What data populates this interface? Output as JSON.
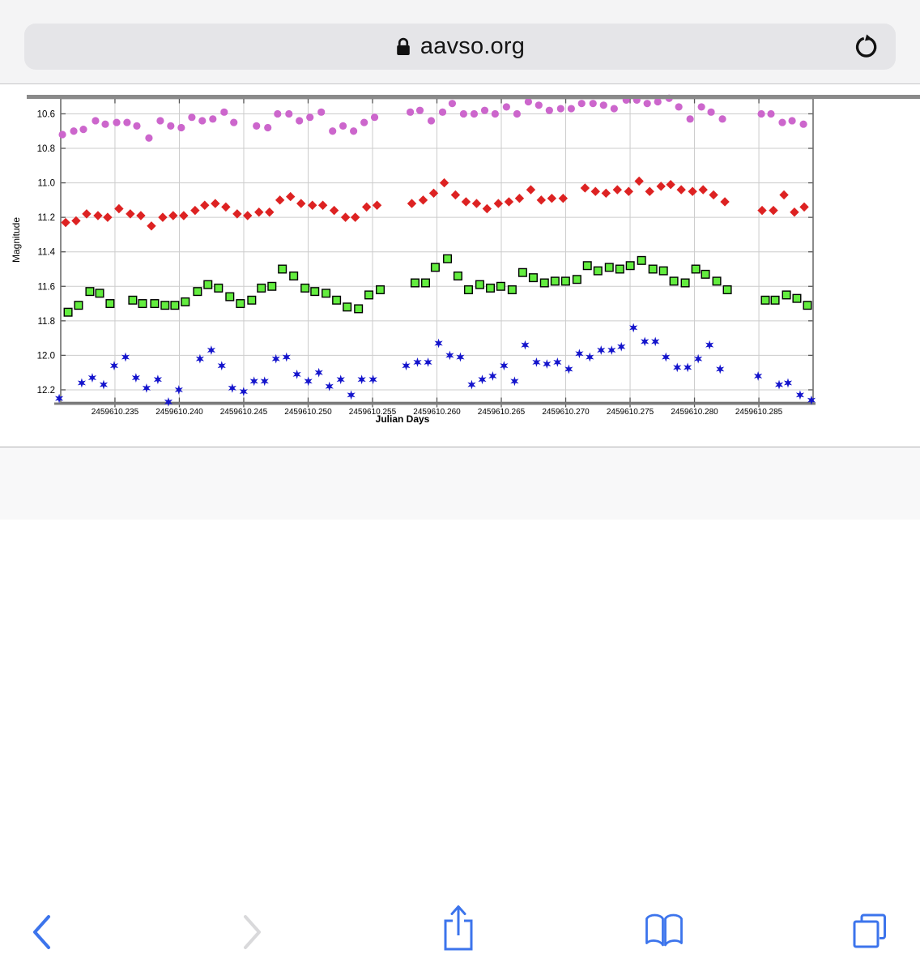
{
  "browser": {
    "url_bar": {
      "domain": "aavso.org",
      "lock_icon": "lock",
      "refresh_icon": "reload"
    },
    "toolbar": {
      "back": {
        "icon": "chevron-left",
        "enabled": true
      },
      "forward": {
        "icon": "chevron-right",
        "enabled": false
      },
      "share": {
        "icon": "share-up-arrow"
      },
      "bookmarks": {
        "icon": "open-book"
      },
      "tabs": {
        "icon": "tab-overview"
      }
    },
    "colors": {
      "accent_blue": "#3c74ec",
      "disabled_gray": "#d9d9db"
    }
  },
  "chart_data": {
    "type": "scatter",
    "title": "",
    "xlabel": "Julian Days",
    "ylabel": "Magnitude",
    "x_base": 2459610,
    "x_axis": {
      "tick_values": [
        0.235,
        0.24,
        0.245,
        0.25,
        0.255,
        0.26,
        0.265,
        0.27,
        0.275,
        0.28,
        0.285
      ],
      "tick_labels": [
        "2459610.235",
        "2459610.240",
        "2459610.245",
        "2459610.250",
        "2459610.255",
        "2459610.260",
        "2459610.265",
        "2459610.270",
        "2459610.275",
        "2459610.280",
        "2459610.285"
      ]
    },
    "y_axis": {
      "tick_values": [
        10.6,
        10.8,
        11.0,
        11.2,
        11.4,
        11.6,
        11.8,
        12.0,
        12.2
      ],
      "tick_labels": [
        "10.6",
        "10.8",
        "11.0",
        "11.2",
        "11.4",
        "11.6",
        "11.8",
        "12.0",
        "12.2"
      ]
    },
    "xlim": [
      0.23079,
      0.28921
    ],
    "ylim": [
      10.511,
      12.273
    ],
    "y_inverted": true,
    "grid": true,
    "grid_color": "#cccccc",
    "legend": "none",
    "series": [
      {
        "name": "violet-circles",
        "marker": "circle",
        "color": "#cc66cc",
        "points": [
          [
            0.23092,
            10.72
          ],
          [
            0.2318,
            10.7
          ],
          [
            0.23255,
            10.69
          ],
          [
            0.23349,
            10.64
          ],
          [
            0.23425,
            10.66
          ],
          [
            0.23513,
            10.65
          ],
          [
            0.23594,
            10.65
          ],
          [
            0.2367,
            10.67
          ],
          [
            0.23764,
            10.74
          ],
          [
            0.23852,
            10.64
          ],
          [
            0.23933,
            10.67
          ],
          [
            0.24015,
            10.68
          ],
          [
            0.24097,
            10.62
          ],
          [
            0.24178,
            10.64
          ],
          [
            0.2426,
            10.63
          ],
          [
            0.24348,
            10.59
          ],
          [
            0.24423,
            10.65
          ],
          [
            0.24599,
            10.67
          ],
          [
            0.24687,
            10.68
          ],
          [
            0.24763,
            10.6
          ],
          [
            0.24851,
            10.6
          ],
          [
            0.24932,
            10.64
          ],
          [
            0.25014,
            10.62
          ],
          [
            0.25102,
            10.59
          ],
          [
            0.2519,
            10.7
          ],
          [
            0.25271,
            10.67
          ],
          [
            0.25353,
            10.7
          ],
          [
            0.25435,
            10.65
          ],
          [
            0.25516,
            10.62
          ],
          [
            0.25793,
            10.59
          ],
          [
            0.25868,
            10.58
          ],
          [
            0.25956,
            10.64
          ],
          [
            0.26044,
            10.59
          ],
          [
            0.26119,
            10.54
          ],
          [
            0.26207,
            10.6
          ],
          [
            0.26289,
            10.6
          ],
          [
            0.26371,
            10.58
          ],
          [
            0.26452,
            10.6
          ],
          [
            0.2654,
            10.56
          ],
          [
            0.26622,
            10.6
          ],
          [
            0.2671,
            10.53
          ],
          [
            0.26791,
            10.55
          ],
          [
            0.26873,
            10.58
          ],
          [
            0.26961,
            10.57
          ],
          [
            0.27043,
            10.57
          ],
          [
            0.27124,
            10.54
          ],
          [
            0.27212,
            10.54
          ],
          [
            0.27294,
            10.55
          ],
          [
            0.27376,
            10.57
          ],
          [
            0.2747,
            10.52
          ],
          [
            0.27552,
            10.52
          ],
          [
            0.27633,
            10.54
          ],
          [
            0.27715,
            10.53
          ],
          [
            0.27803,
            10.51
          ],
          [
            0.27878,
            10.56
          ],
          [
            0.27966,
            10.63
          ],
          [
            0.28054,
            10.56
          ],
          [
            0.28129,
            10.59
          ],
          [
            0.28217,
            10.63
          ],
          [
            0.28519,
            10.6
          ],
          [
            0.28594,
            10.6
          ],
          [
            0.28682,
            10.65
          ],
          [
            0.28758,
            10.64
          ],
          [
            0.28846,
            10.66
          ]
        ]
      },
      {
        "name": "red-diamonds",
        "marker": "diamond",
        "color": "#dd2222",
        "points": [
          [
            0.23117,
            11.23
          ],
          [
            0.23198,
            11.22
          ],
          [
            0.2328,
            11.18
          ],
          [
            0.23368,
            11.19
          ],
          [
            0.23443,
            11.2
          ],
          [
            0.23531,
            11.15
          ],
          [
            0.23619,
            11.18
          ],
          [
            0.23701,
            11.19
          ],
          [
            0.23783,
            11.25
          ],
          [
            0.23871,
            11.2
          ],
          [
            0.23952,
            11.19
          ],
          [
            0.24034,
            11.19
          ],
          [
            0.24122,
            11.16
          ],
          [
            0.24197,
            11.13
          ],
          [
            0.24279,
            11.12
          ],
          [
            0.24361,
            11.14
          ],
          [
            0.24449,
            11.18
          ],
          [
            0.2453,
            11.19
          ],
          [
            0.24618,
            11.17
          ],
          [
            0.247,
            11.17
          ],
          [
            0.24781,
            11.1
          ],
          [
            0.24863,
            11.08
          ],
          [
            0.24945,
            11.12
          ],
          [
            0.25033,
            11.13
          ],
          [
            0.25114,
            11.13
          ],
          [
            0.25202,
            11.16
          ],
          [
            0.2529,
            11.2
          ],
          [
            0.25366,
            11.2
          ],
          [
            0.25454,
            11.14
          ],
          [
            0.25535,
            11.13
          ],
          [
            0.25805,
            11.12
          ],
          [
            0.25893,
            11.1
          ],
          [
            0.25975,
            11.06
          ],
          [
            0.26057,
            11.0
          ],
          [
            0.26144,
            11.07
          ],
          [
            0.26226,
            11.11
          ],
          [
            0.26308,
            11.12
          ],
          [
            0.26389,
            11.15
          ],
          [
            0.26477,
            11.12
          ],
          [
            0.26559,
            11.11
          ],
          [
            0.26641,
            11.09
          ],
          [
            0.26729,
            11.04
          ],
          [
            0.2681,
            11.1
          ],
          [
            0.26892,
            11.09
          ],
          [
            0.2698,
            11.09
          ],
          [
            0.2715,
            11.03
          ],
          [
            0.27231,
            11.05
          ],
          [
            0.27313,
            11.06
          ],
          [
            0.27401,
            11.04
          ],
          [
            0.27489,
            11.05
          ],
          [
            0.2757,
            10.99
          ],
          [
            0.27652,
            11.05
          ],
          [
            0.2774,
            11.02
          ],
          [
            0.27815,
            11.01
          ],
          [
            0.27897,
            11.04
          ],
          [
            0.27985,
            11.05
          ],
          [
            0.28067,
            11.04
          ],
          [
            0.28148,
            11.07
          ],
          [
            0.28236,
            11.11
          ],
          [
            0.28525,
            11.16
          ],
          [
            0.28613,
            11.16
          ],
          [
            0.28695,
            11.07
          ],
          [
            0.28776,
            11.17
          ],
          [
            0.28852,
            11.14
          ]
        ]
      },
      {
        "name": "green-squares",
        "marker": "square",
        "color": "#63ed3f",
        "border": "#000000",
        "points": [
          [
            0.23136,
            11.75
          ],
          [
            0.23217,
            11.71
          ],
          [
            0.23305,
            11.63
          ],
          [
            0.23381,
            11.64
          ],
          [
            0.23462,
            11.7
          ],
          [
            0.23638,
            11.68
          ],
          [
            0.23714,
            11.7
          ],
          [
            0.23808,
            11.7
          ],
          [
            0.23889,
            11.71
          ],
          [
            0.23965,
            11.71
          ],
          [
            0.24046,
            11.69
          ],
          [
            0.24141,
            11.63
          ],
          [
            0.24222,
            11.59
          ],
          [
            0.24304,
            11.61
          ],
          [
            0.24392,
            11.66
          ],
          [
            0.24474,
            11.7
          ],
          [
            0.24562,
            11.68
          ],
          [
            0.24637,
            11.61
          ],
          [
            0.24719,
            11.6
          ],
          [
            0.248,
            11.5
          ],
          [
            0.24888,
            11.54
          ],
          [
            0.24976,
            11.61
          ],
          [
            0.25052,
            11.63
          ],
          [
            0.25139,
            11.64
          ],
          [
            0.25221,
            11.68
          ],
          [
            0.25303,
            11.72
          ],
          [
            0.25391,
            11.73
          ],
          [
            0.25472,
            11.65
          ],
          [
            0.2556,
            11.62
          ],
          [
            0.2583,
            11.58
          ],
          [
            0.25912,
            11.58
          ],
          [
            0.25987,
            11.49
          ],
          [
            0.26082,
            11.44
          ],
          [
            0.26163,
            11.54
          ],
          [
            0.26245,
            11.62
          ],
          [
            0.26333,
            11.59
          ],
          [
            0.26415,
            11.61
          ],
          [
            0.26496,
            11.6
          ],
          [
            0.26584,
            11.62
          ],
          [
            0.26666,
            11.52
          ],
          [
            0.26748,
            11.55
          ],
          [
            0.26835,
            11.58
          ],
          [
            0.26917,
            11.57
          ],
          [
            0.26999,
            11.57
          ],
          [
            0.27087,
            11.56
          ],
          [
            0.27168,
            11.48
          ],
          [
            0.2725,
            11.51
          ],
          [
            0.27338,
            11.49
          ],
          [
            0.2742,
            11.5
          ],
          [
            0.27501,
            11.48
          ],
          [
            0.27589,
            11.45
          ],
          [
            0.27677,
            11.5
          ],
          [
            0.27759,
            11.51
          ],
          [
            0.2784,
            11.57
          ],
          [
            0.27928,
            11.58
          ],
          [
            0.2801,
            11.5
          ],
          [
            0.28085,
            11.53
          ],
          [
            0.28173,
            11.57
          ],
          [
            0.28255,
            11.62
          ],
          [
            0.2855,
            11.68
          ],
          [
            0.28626,
            11.68
          ],
          [
            0.28714,
            11.65
          ],
          [
            0.28795,
            11.67
          ],
          [
            0.28877,
            11.71
          ]
        ]
      },
      {
        "name": "blue-stars",
        "marker": "star",
        "color": "#1414cc",
        "points": [
          [
            0.23067,
            12.25
          ],
          [
            0.23242,
            12.16
          ],
          [
            0.23324,
            12.13
          ],
          [
            0.23412,
            12.17
          ],
          [
            0.23494,
            12.06
          ],
          [
            0.23582,
            12.01
          ],
          [
            0.23663,
            12.13
          ],
          [
            0.23745,
            12.19
          ],
          [
            0.23833,
            12.14
          ],
          [
            0.23915,
            12.27
          ],
          [
            0.23996,
            12.2
          ],
          [
            0.2416,
            12.02
          ],
          [
            0.24248,
            11.97
          ],
          [
            0.24329,
            12.06
          ],
          [
            0.24411,
            12.19
          ],
          [
            0.24499,
            12.21
          ],
          [
            0.2458,
            12.15
          ],
          [
            0.24662,
            12.15
          ],
          [
            0.2475,
            12.02
          ],
          [
            0.24832,
            12.01
          ],
          [
            0.24913,
            12.11
          ],
          [
            0.25001,
            12.15
          ],
          [
            0.25083,
            12.1
          ],
          [
            0.25165,
            12.18
          ],
          [
            0.25253,
            12.14
          ],
          [
            0.25334,
            12.23
          ],
          [
            0.25416,
            12.14
          ],
          [
            0.25504,
            12.14
          ],
          [
            0.25761,
            12.06
          ],
          [
            0.25849,
            12.04
          ],
          [
            0.25931,
            12.04
          ],
          [
            0.26013,
            11.93
          ],
          [
            0.261,
            12.0
          ],
          [
            0.26182,
            12.01
          ],
          [
            0.2627,
            12.17
          ],
          [
            0.26352,
            12.14
          ],
          [
            0.26433,
            12.12
          ],
          [
            0.26521,
            12.06
          ],
          [
            0.26603,
            12.15
          ],
          [
            0.26685,
            11.94
          ],
          [
            0.26773,
            12.04
          ],
          [
            0.26854,
            12.05
          ],
          [
            0.26936,
            12.04
          ],
          [
            0.27024,
            12.08
          ],
          [
            0.27106,
            11.99
          ],
          [
            0.27187,
            12.01
          ],
          [
            0.27275,
            11.97
          ],
          [
            0.27357,
            11.97
          ],
          [
            0.27432,
            11.95
          ],
          [
            0.27526,
            11.84
          ],
          [
            0.27614,
            11.92
          ],
          [
            0.27696,
            11.92
          ],
          [
            0.27778,
            12.01
          ],
          [
            0.27866,
            12.07
          ],
          [
            0.27947,
            12.07
          ],
          [
            0.28029,
            12.02
          ],
          [
            0.28117,
            11.94
          ],
          [
            0.28199,
            12.08
          ],
          [
            0.28494,
            12.12
          ],
          [
            0.28657,
            12.17
          ],
          [
            0.28726,
            12.16
          ],
          [
            0.2882,
            12.23
          ],
          [
            0.28908,
            12.26
          ]
        ]
      }
    ]
  }
}
